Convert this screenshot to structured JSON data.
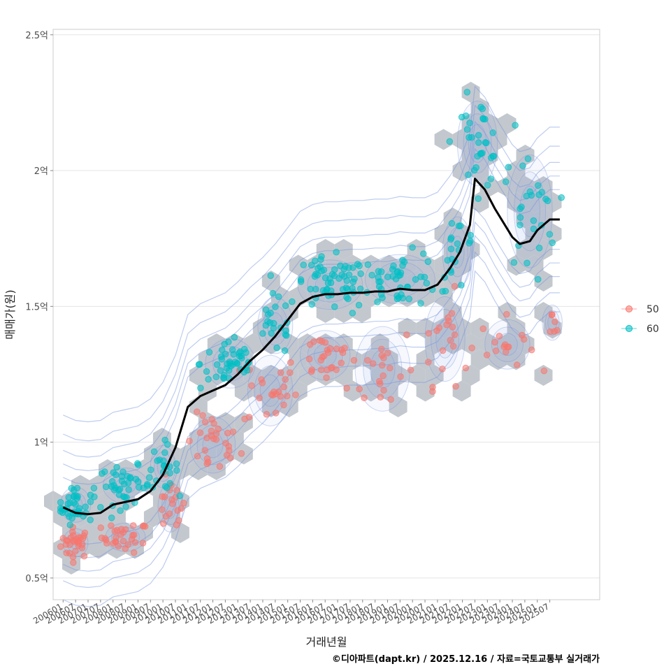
{
  "chart_data": {
    "type": "scatter",
    "title": "",
    "xlabel": "거래년월",
    "ylabel": "매매가(원)",
    "caption": "©디아파트(dapt.kr) / 2025.12.16 / 자료=국토교통부 실거래가",
    "ylim": [
      0.42,
      2.52
    ],
    "y_unit": "억",
    "y_ticks": [
      0.5,
      1,
      1.5,
      2,
      2.5
    ],
    "y_tick_labels": [
      "0.5억",
      "1억",
      "1.5억",
      "2억",
      "2.5억"
    ],
    "x_range": [
      2005.6,
      2027.5
    ],
    "x_tick_labels": [
      "200601",
      "200607",
      "200701",
      "200707",
      "200801",
      "200807",
      "200901",
      "200907",
      "201001",
      "201007",
      "201101",
      "201107",
      "201201",
      "201207",
      "201301",
      "201307",
      "201401",
      "201407",
      "201501",
      "201507",
      "201601",
      "201607",
      "201701",
      "201707",
      "201801",
      "201807",
      "201901",
      "201907",
      "202001",
      "202007",
      "202101",
      "202107",
      "202201",
      "202207",
      "202301",
      "202307",
      "202401",
      "202407",
      "202501",
      "202507"
    ],
    "legend": {
      "position": "right",
      "entries": [
        {
          "label": "50",
          "color": "#F8766D"
        },
        {
          "label": "60",
          "color": "#00BFC4"
        }
      ]
    },
    "layers": [
      "hexbin density",
      "2D density contours",
      "scatter points by area group",
      "moving-average trend line"
    ],
    "trend_line": {
      "name": "moving average",
      "color": "#000000",
      "x": [
        2006.0,
        2006.5,
        2007.0,
        2007.5,
        2008.0,
        2008.5,
        2009.0,
        2009.5,
        2010.0,
        2010.5,
        2011.0,
        2011.5,
        2012.0,
        2012.5,
        2013.0,
        2013.5,
        2014.0,
        2014.5,
        2015.0,
        2015.5,
        2016.0,
        2016.5,
        2017.0,
        2017.5,
        2018.0,
        2018.5,
        2019.0,
        2019.5,
        2020.0,
        2020.5,
        2021.0,
        2021.5,
        2021.9,
        2022.3,
        2022.5,
        2022.9,
        2023.3,
        2023.7,
        2024.0,
        2024.3,
        2024.7,
        2025.0,
        2025.5,
        2025.9
      ],
      "y": [
        0.76,
        0.74,
        0.735,
        0.74,
        0.77,
        0.78,
        0.79,
        0.82,
        0.88,
        0.98,
        1.13,
        1.17,
        1.19,
        1.21,
        1.25,
        1.3,
        1.34,
        1.39,
        1.45,
        1.51,
        1.535,
        1.545,
        1.545,
        1.55,
        1.55,
        1.555,
        1.555,
        1.565,
        1.56,
        1.56,
        1.58,
        1.64,
        1.7,
        1.8,
        1.97,
        1.93,
        1.86,
        1.8,
        1.755,
        1.73,
        1.74,
        1.78,
        1.82,
        1.82
      ]
    },
    "series": [
      {
        "name": "50",
        "color": "#F8766D",
        "clusters": [
          {
            "x": 2006.5,
            "y": 0.63,
            "sx": 0.5,
            "sy": 0.04,
            "n": 30
          },
          {
            "x": 2008.5,
            "y": 0.65,
            "sx": 0.8,
            "sy": 0.04,
            "n": 30
          },
          {
            "x": 2010.3,
            "y": 0.76,
            "sx": 0.5,
            "sy": 0.07,
            "n": 18
          },
          {
            "x": 2012.0,
            "y": 0.99,
            "sx": 0.9,
            "sy": 0.08,
            "n": 28
          },
          {
            "x": 2014.3,
            "y": 1.19,
            "sx": 0.9,
            "sy": 0.1,
            "n": 24
          },
          {
            "x": 2016.5,
            "y": 1.32,
            "sx": 1.0,
            "sy": 0.07,
            "n": 24
          },
          {
            "x": 2018.8,
            "y": 1.27,
            "sx": 1.1,
            "sy": 0.12,
            "n": 22
          },
          {
            "x": 2021.3,
            "y": 1.38,
            "sx": 0.8,
            "sy": 0.12,
            "n": 20
          },
          {
            "x": 2023.8,
            "y": 1.36,
            "sx": 0.9,
            "sy": 0.07,
            "n": 16
          },
          {
            "x": 2025.6,
            "y": 1.44,
            "sx": 0.4,
            "sy": 0.05,
            "n": 6
          }
        ]
      },
      {
        "name": "60",
        "color": "#00BFC4",
        "clusters": [
          {
            "x": 2006.5,
            "y": 0.77,
            "sx": 0.6,
            "sy": 0.05,
            "n": 40
          },
          {
            "x": 2008.5,
            "y": 0.84,
            "sx": 0.9,
            "sy": 0.05,
            "n": 40
          },
          {
            "x": 2010.0,
            "y": 0.91,
            "sx": 0.5,
            "sy": 0.06,
            "n": 22
          },
          {
            "x": 2012.7,
            "y": 1.29,
            "sx": 1.0,
            "sy": 0.07,
            "n": 45
          },
          {
            "x": 2014.5,
            "y": 1.43,
            "sx": 0.7,
            "sy": 0.08,
            "n": 22
          },
          {
            "x": 2016.7,
            "y": 1.58,
            "sx": 1.3,
            "sy": 0.07,
            "n": 55
          },
          {
            "x": 2019.5,
            "y": 1.6,
            "sx": 1.4,
            "sy": 0.07,
            "n": 50
          },
          {
            "x": 2021.8,
            "y": 1.7,
            "sx": 0.6,
            "sy": 0.1,
            "n": 18
          },
          {
            "x": 2022.6,
            "y": 2.1,
            "sx": 0.8,
            "sy": 0.12,
            "n": 34
          },
          {
            "x": 2024.7,
            "y": 1.85,
            "sx": 0.9,
            "sy": 0.16,
            "n": 26
          }
        ]
      }
    ]
  }
}
